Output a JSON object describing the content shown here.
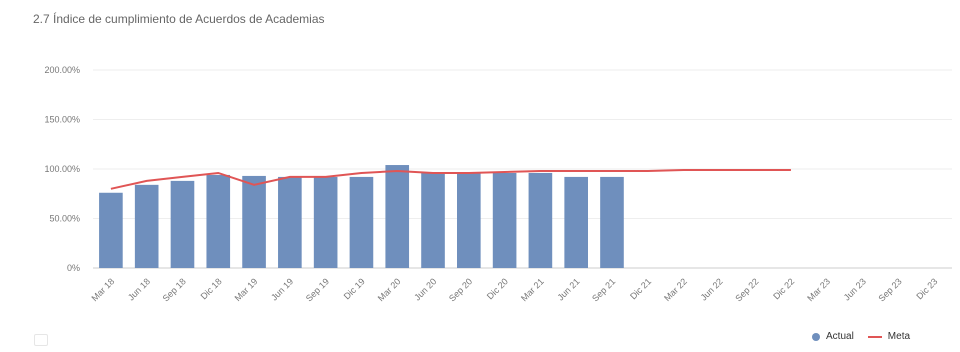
{
  "title": "2.7 Índice de cumplimiento de Acuerdos de Academias",
  "colors": {
    "bar": "#6f8fbd",
    "line": "#e05555",
    "grid": "#eeeeee",
    "axis": "#cccccc"
  },
  "legend": {
    "actual_label": "Actual",
    "meta_label": "Meta"
  },
  "chart_data": {
    "type": "bar",
    "categories": [
      "Mar 18",
      "Jun 18",
      "Sep 18",
      "Dic 18",
      "Mar 19",
      "Jun 19",
      "Sep 19",
      "Dic 19",
      "Mar 20",
      "Jun 20",
      "Sep 20",
      "Dic 20",
      "Mar 21",
      "Jun 21",
      "Sep 21",
      "Dic 21",
      "Mar 22",
      "Jun 22",
      "Sep 22",
      "Dic 22",
      "Mar 23",
      "Jun 23",
      "Sep 23",
      "Dic 23"
    ],
    "y_ticks": [
      "0%",
      "50.00%",
      "100.00%",
      "150.00%",
      "200.00%"
    ],
    "ylim": [
      0,
      200
    ],
    "series": [
      {
        "name": "Actual",
        "type": "bar",
        "values": [
          76,
          84,
          88,
          94,
          93,
          92,
          92,
          92,
          104,
          96,
          96,
          96,
          96,
          92,
          92,
          null,
          null,
          null,
          null,
          null,
          null,
          null,
          null,
          null
        ]
      },
      {
        "name": "Meta",
        "type": "line",
        "values": [
          80,
          88,
          92,
          96,
          84,
          92,
          92,
          96,
          98,
          96,
          96,
          97,
          98,
          98,
          98,
          98,
          99,
          99,
          99,
          99,
          null,
          null,
          null,
          null
        ]
      }
    ]
  }
}
